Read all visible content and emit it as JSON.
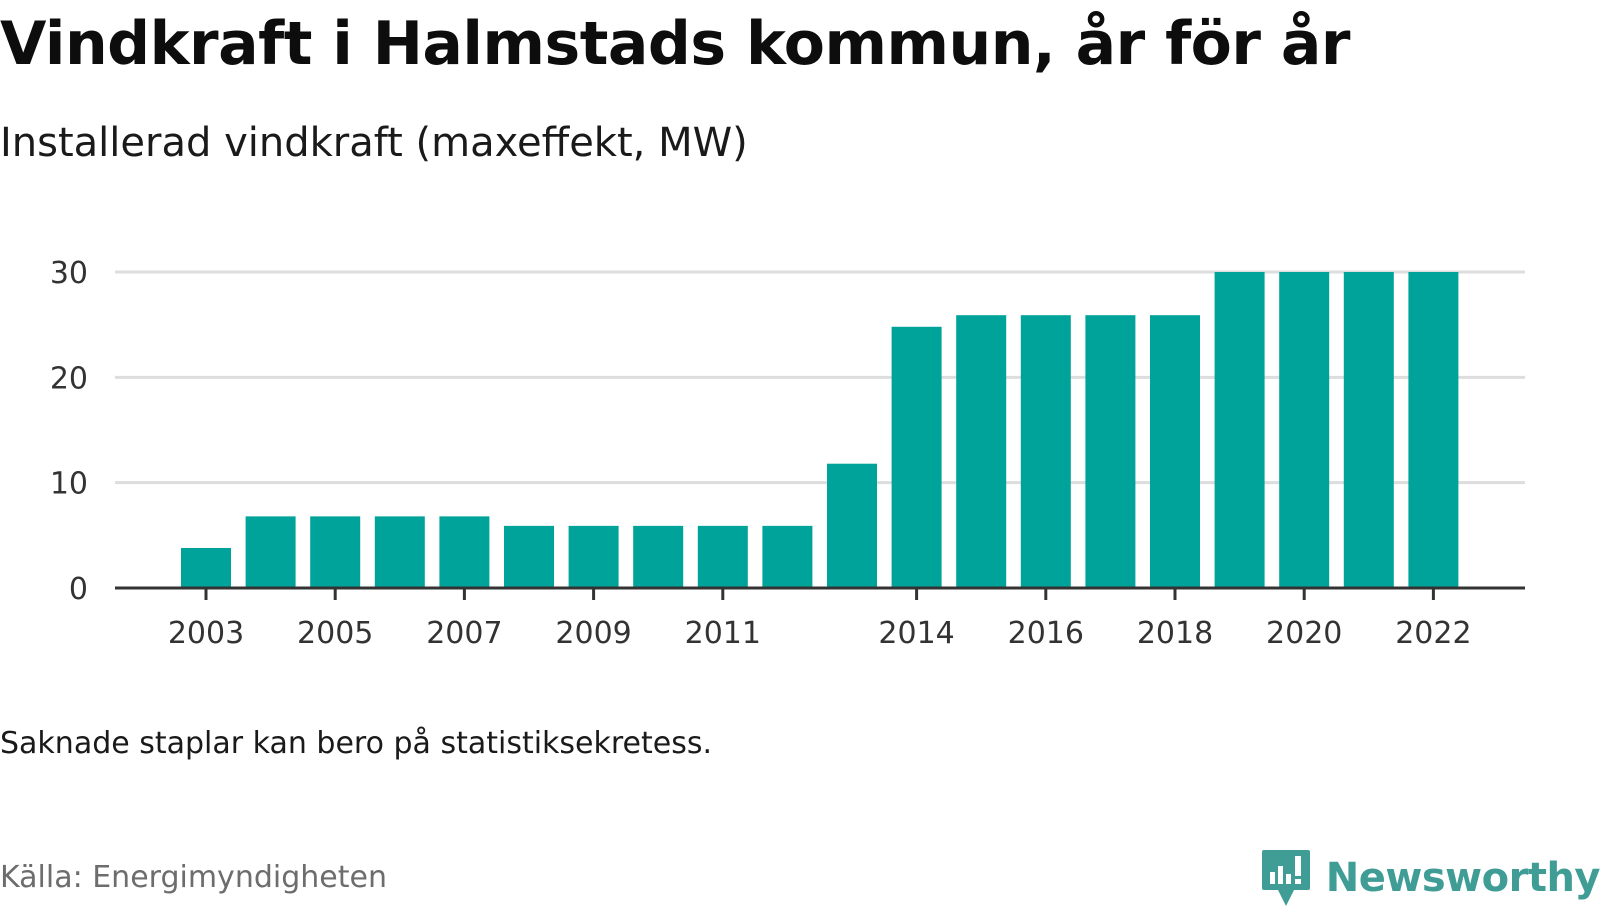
{
  "title": "Vindkraft i Halmstads kommun, år för år",
  "subtitle": "Installerad vindkraft (maxeffekt, MW)",
  "note": "Saknade staplar kan bero på statistiksekretess.",
  "source": "Källa: Energimyndigheten",
  "brand": {
    "name": "Newsworthy",
    "color": "#3f9d95",
    "icon": "newsworthy-logo-icon"
  },
  "colors": {
    "bar": "#00a39a",
    "grid": "#dddddd",
    "axis": "#333333"
  },
  "chart_data": {
    "type": "bar",
    "title": "Vindkraft i Halmstads kommun, år för år",
    "subtitle": "Installerad vindkraft (maxeffekt, MW)",
    "xlabel": "",
    "ylabel": "",
    "categories": [
      "2003",
      "2004",
      "2005",
      "2006",
      "2007",
      "2008",
      "2009",
      "2010",
      "2011",
      "2012",
      "2013",
      "2014",
      "2015",
      "2016",
      "2017",
      "2018",
      "2019",
      "2020",
      "2021",
      "2022"
    ],
    "values": [
      3.8,
      6.8,
      6.8,
      6.8,
      6.8,
      5.9,
      5.9,
      5.9,
      5.9,
      5.9,
      11.8,
      24.8,
      25.9,
      25.9,
      25.9,
      25.9,
      30,
      30,
      30,
      30
    ],
    "x_tick_labels": [
      "2003",
      "2005",
      "2007",
      "2009",
      "2011",
      "2014",
      "2016",
      "2018",
      "2020",
      "2022"
    ],
    "y_ticks": [
      0,
      10,
      20,
      30
    ],
    "ylim": [
      0,
      30
    ],
    "grid": true,
    "legend": "none"
  }
}
